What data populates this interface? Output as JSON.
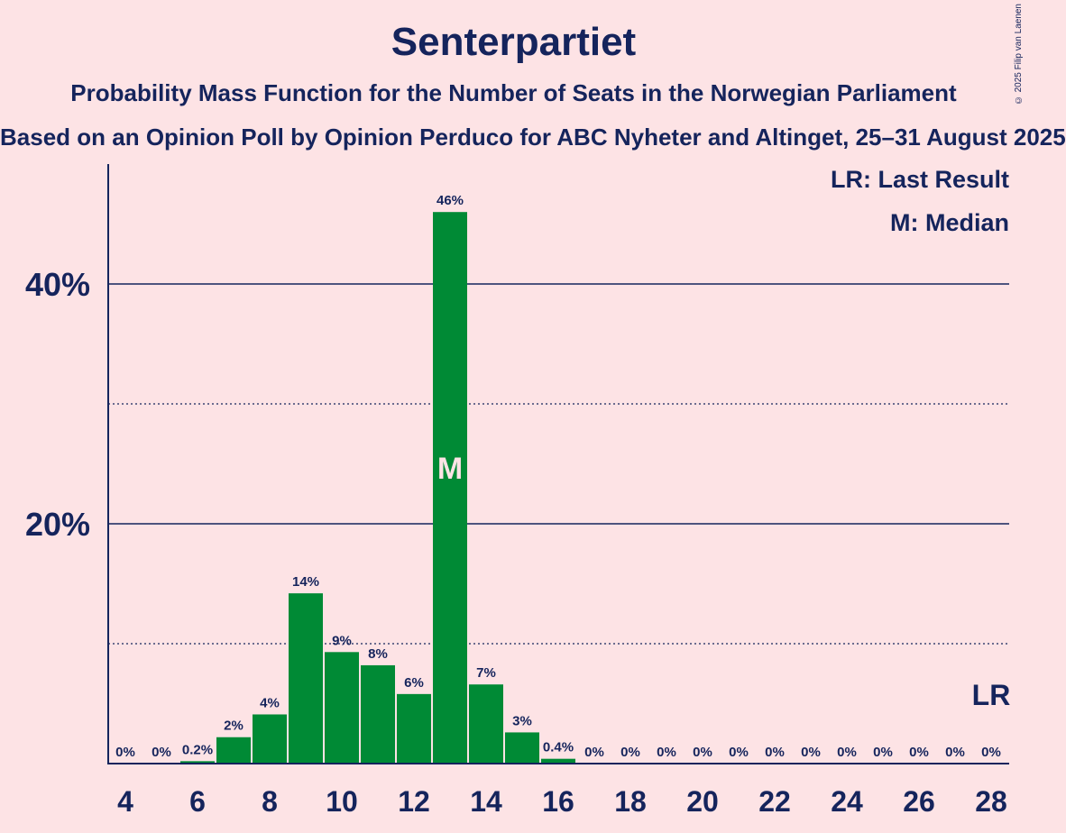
{
  "chart_data": {
    "type": "bar",
    "title": "Senterpartiet",
    "subtitle": "Probability Mass Function for the Number of Seats in the Norwegian Parliament",
    "subtitle2": "Based on an Opinion Poll by Opinion Perduco for ABC Nyheter and Altinget, 25–31 August 2025",
    "copyright": "© 2025 Filip van Laenen",
    "legend": {
      "lr": "LR: Last Result",
      "median": "M: Median",
      "placement": "top-right"
    },
    "x": [
      4,
      5,
      6,
      7,
      8,
      9,
      10,
      11,
      12,
      13,
      14,
      15,
      16,
      17,
      18,
      19,
      20,
      21,
      22,
      23,
      24,
      25,
      26,
      27,
      28
    ],
    "values": [
      0,
      0,
      0.2,
      2.2,
      4.1,
      14.2,
      9.3,
      8.2,
      5.8,
      46,
      6.6,
      2.6,
      0.4,
      0,
      0,
      0,
      0,
      0,
      0,
      0,
      0,
      0,
      0,
      0,
      0
    ],
    "labels": [
      "0%",
      "0%",
      "0.2%",
      "2%",
      "4%",
      "14%",
      "9%",
      "8%",
      "6%",
      "46%",
      "7%",
      "3%",
      "0.4%",
      "0%",
      "0%",
      "0%",
      "0%",
      "0%",
      "0%",
      "0%",
      "0%",
      "0%",
      "0%",
      "0%",
      "0%"
    ],
    "x_ticks": [
      4,
      6,
      8,
      10,
      12,
      14,
      16,
      18,
      20,
      22,
      24,
      26,
      28
    ],
    "y_ticks": [
      {
        "value": 20,
        "label": "20%"
      },
      {
        "value": 40,
        "label": "40%"
      }
    ],
    "y_minor_gridlines": [
      10,
      30
    ],
    "ylim": [
      0,
      50
    ],
    "median_seat": 13,
    "median_mark": "M",
    "last_result_seat": 28,
    "last_result_mark": "LR",
    "bar_color": "#008a35",
    "text_color": "#15245c",
    "background": "#fde3e5"
  }
}
